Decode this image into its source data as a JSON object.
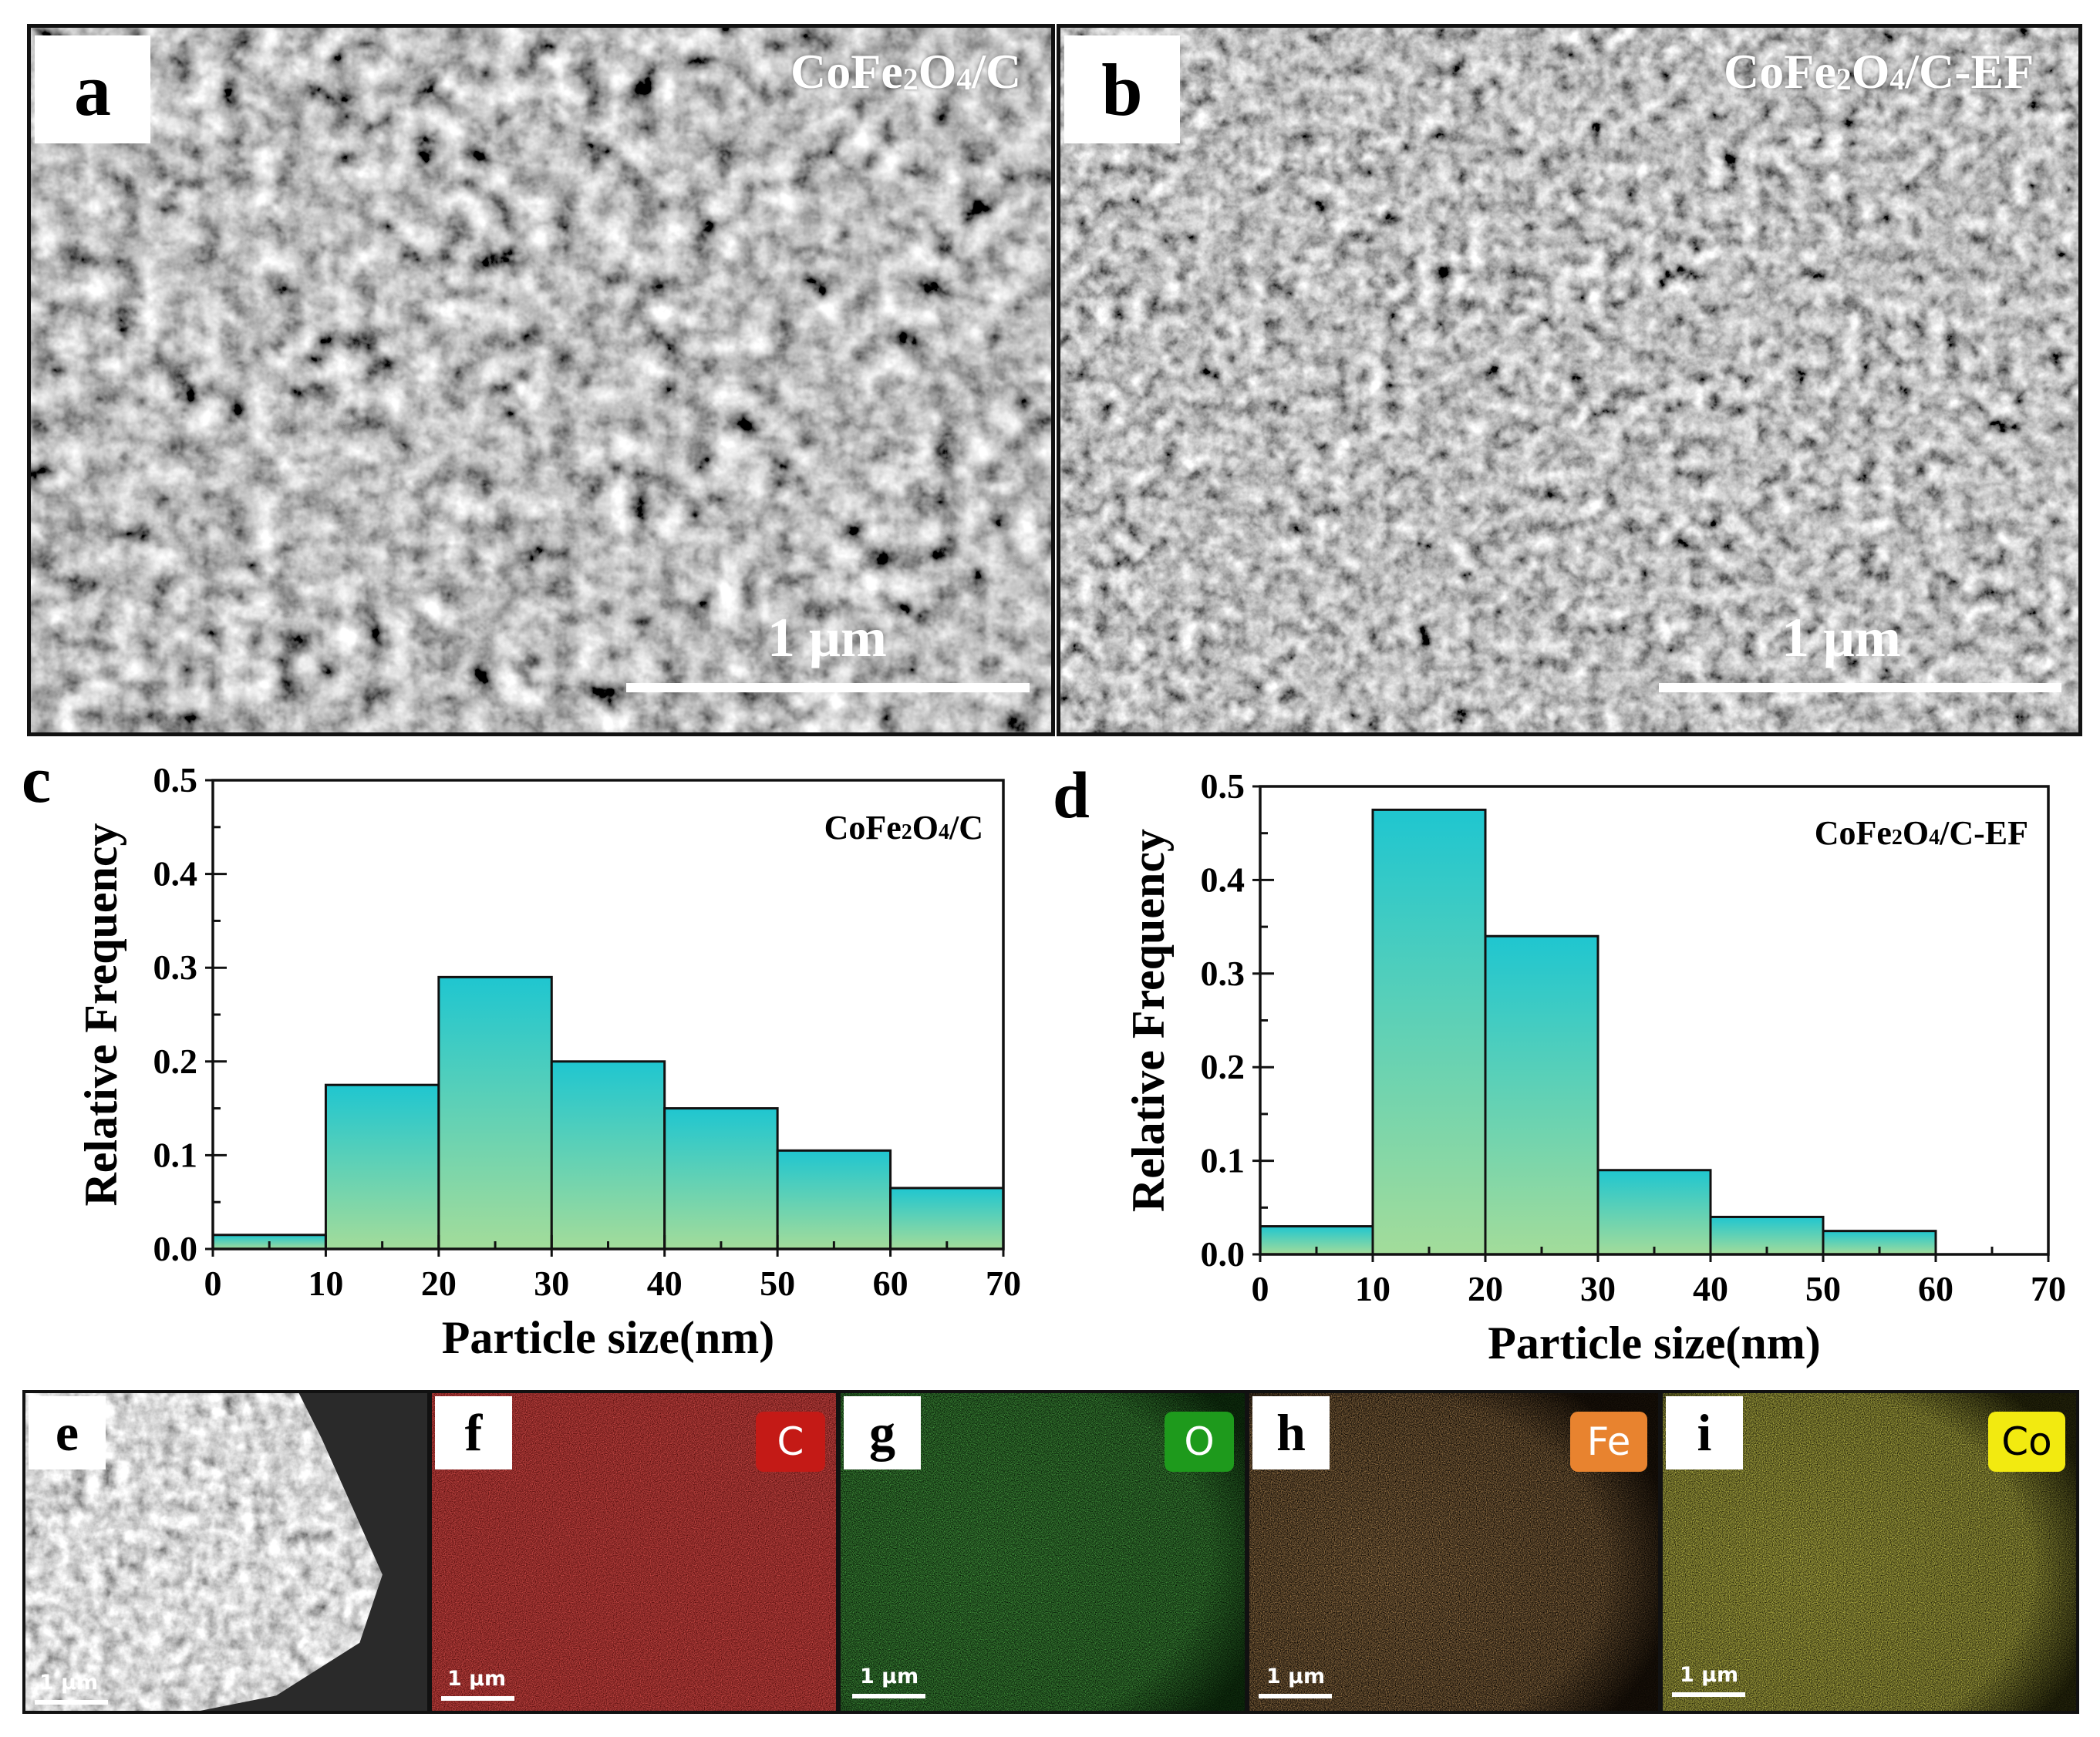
{
  "panels": {
    "a": {
      "letter": "a",
      "sample_main": "CoFe",
      "sample_sub1": "2",
      "sample_mid": "O",
      "sample_sub2": "4",
      "sample_end": "/C",
      "scale": "1 μm"
    },
    "b": {
      "letter": "b",
      "sample_main": "CoFe",
      "sample_sub1": "2",
      "sample_mid": "O",
      "sample_sub2": "4",
      "sample_end": "/C-EF",
      "scale": "1 μm"
    },
    "c": {
      "letter": "c"
    },
    "d": {
      "letter": "d"
    },
    "e": {
      "letter": "e",
      "scale": "1 μm"
    },
    "f": {
      "letter": "f",
      "element": "C",
      "scale": "1 μm"
    },
    "g": {
      "letter": "g",
      "element": "O",
      "scale": "1 μm"
    },
    "h": {
      "letter": "h",
      "element": "Fe",
      "scale": "1 μm"
    },
    "i": {
      "letter": "i",
      "element": "Co",
      "scale": "1 μm"
    }
  },
  "colors": {
    "bar_top": "#1fc6d0",
    "bar_bottom": "#a3dc9a",
    "map_C": "#c41a16",
    "map_O": "#1e9a1c",
    "map_Fe": "#e8832f",
    "map_Co": "#f2ea10"
  },
  "chart_data": [
    {
      "type": "bar",
      "title": "",
      "annotation": {
        "main": "CoFe",
        "sub1": "2",
        "mid": "O",
        "sub2": "4",
        "end": "/C"
      },
      "xlabel": "Particle size(nm)",
      "ylabel": "Relative Frequency",
      "x_ticks": [
        "0",
        "10",
        "20",
        "30",
        "40",
        "50",
        "60",
        "70"
      ],
      "y_ticks": [
        "0.0",
        "0.1",
        "0.2",
        "0.3",
        "0.4",
        "0.5"
      ],
      "xlim": [
        0,
        70
      ],
      "ylim": [
        0,
        0.5
      ],
      "bins": [
        [
          0,
          10
        ],
        [
          10,
          20
        ],
        [
          20,
          30
        ],
        [
          30,
          40
        ],
        [
          40,
          50
        ],
        [
          50,
          60
        ],
        [
          60,
          70
        ]
      ],
      "values": [
        0.015,
        0.175,
        0.29,
        0.2,
        0.15,
        0.105,
        0.065
      ]
    },
    {
      "type": "bar",
      "title": "",
      "annotation": {
        "main": "CoFe",
        "sub1": "2",
        "mid": "O",
        "sub2": "4",
        "end": "/C-EF"
      },
      "xlabel": "Particle size(nm)",
      "ylabel": "Relative Frequency",
      "x_ticks": [
        "0",
        "10",
        "20",
        "30",
        "40",
        "50",
        "60",
        "70"
      ],
      "y_ticks": [
        "0.0",
        "0.1",
        "0.2",
        "0.3",
        "0.4",
        "0.5"
      ],
      "xlim": [
        0,
        70
      ],
      "ylim": [
        0,
        0.5
      ],
      "bins": [
        [
          0,
          10
        ],
        [
          10,
          20
        ],
        [
          20,
          30
        ],
        [
          30,
          40
        ],
        [
          40,
          50
        ],
        [
          50,
          60
        ],
        [
          60,
          70
        ]
      ],
      "values": [
        0.03,
        0.475,
        0.34,
        0.09,
        0.04,
        0.025,
        0
      ]
    }
  ]
}
